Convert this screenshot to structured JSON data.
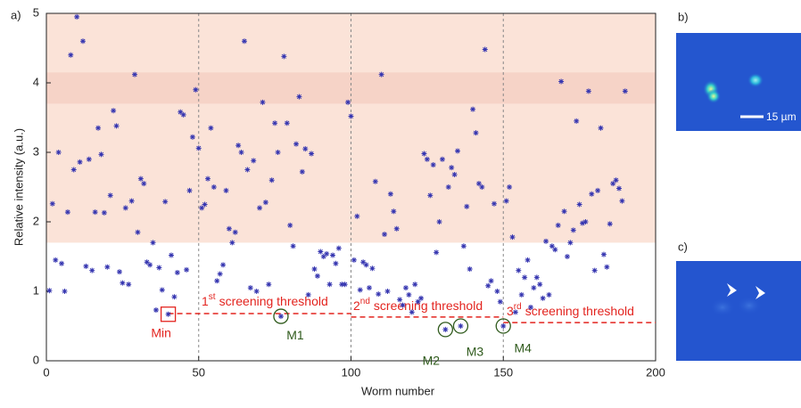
{
  "chart_data": {
    "type": "scatter",
    "panel_label": "a)",
    "xlabel": "Worm number",
    "ylabel": "Relative intensity (a.u.)",
    "xlim": [
      0,
      200
    ],
    "xticks": [
      0,
      50,
      100,
      150,
      200
    ],
    "ylim": [
      0,
      5
    ],
    "yticks": [
      0,
      1,
      2,
      3,
      4,
      5
    ],
    "vlines": [
      50,
      100,
      150
    ],
    "color": "#3535b0",
    "bands": [
      {
        "from": 1.7,
        "to": 5,
        "color": "#fbe3d8"
      },
      {
        "from": 3.7,
        "to": 4.15,
        "color": "#f6d3c7"
      }
    ],
    "x": [
      1,
      2,
      3,
      4,
      5,
      6,
      7,
      8,
      9,
      10,
      11,
      12,
      13,
      14,
      15,
      16,
      17,
      18,
      19,
      20,
      21,
      22,
      23,
      24,
      25,
      26,
      27,
      28,
      29,
      30,
      31,
      32,
      33,
      34,
      35,
      36,
      37,
      38,
      39,
      40,
      41,
      42,
      43,
      44,
      45,
      46,
      47,
      48,
      49,
      50,
      51,
      52,
      53,
      54,
      55,
      56,
      57,
      58,
      59,
      60,
      61,
      62,
      63,
      64,
      65,
      66,
      67,
      68,
      69,
      70,
      71,
      72,
      73,
      74,
      75,
      76,
      77,
      78,
      79,
      80,
      81,
      82,
      83,
      84,
      85,
      86,
      87,
      88,
      89,
      90,
      91,
      92,
      93,
      94,
      95,
      96,
      97,
      98,
      99,
      100,
      101,
      102,
      103,
      104,
      105,
      106,
      107,
      108,
      109,
      110,
      111,
      112,
      113,
      114,
      115,
      116,
      117,
      118,
      119,
      120,
      121,
      122,
      123,
      124,
      125,
      126,
      127,
      128,
      129,
      130,
      131,
      132,
      133,
      134,
      135,
      136,
      137,
      138,
      139,
      140,
      141,
      142,
      143,
      144,
      145,
      146,
      147,
      148,
      149,
      150,
      151,
      152,
      153,
      154,
      155,
      156,
      157,
      158,
      159,
      160,
      161,
      162,
      163,
      164,
      165,
      166,
      167,
      168,
      169,
      170,
      171,
      172,
      173,
      174,
      175,
      176,
      177,
      178,
      179,
      180,
      181,
      182,
      183,
      184,
      185,
      186,
      187,
      188,
      189,
      190
    ],
    "values": [
      1.01,
      2.26,
      1.45,
      3.0,
      1.4,
      1.0,
      2.14,
      4.4,
      2.75,
      4.95,
      2.86,
      4.6,
      1.36,
      2.9,
      1.3,
      2.14,
      3.35,
      2.97,
      2.13,
      1.35,
      2.38,
      3.6,
      3.38,
      1.28,
      1.12,
      2.2,
      1.1,
      2.3,
      4.12,
      1.85,
      2.62,
      2.55,
      1.42,
      1.38,
      1.7,
      0.73,
      1.34,
      1.02,
      2.29,
      0.67,
      1.52,
      0.92,
      1.27,
      3.58,
      3.54,
      1.31,
      2.45,
      3.22,
      3.9,
      3.06,
      2.2,
      2.25,
      2.62,
      3.35,
      2.5,
      1.15,
      1.25,
      1.38,
      2.45,
      1.9,
      1.7,
      1.85,
      3.1,
      3.0,
      4.6,
      2.75,
      1.05,
      2.88,
      1.0,
      2.2,
      3.72,
      2.28,
      1.1,
      2.6,
      3.42,
      3.0,
      0.64,
      4.38,
      3.42,
      1.95,
      1.65,
      3.12,
      3.8,
      2.72,
      3.05,
      0.95,
      2.98,
      1.32,
      1.22,
      1.57,
      1.5,
      1.54,
      1.1,
      1.52,
      1.4,
      1.62,
      1.1,
      1.1,
      3.72,
      3.52,
      1.45,
      2.08,
      1.02,
      1.42,
      1.38,
      1.05,
      1.33,
      2.58,
      0.96,
      4.12,
      1.82,
      1.0,
      2.4,
      2.15,
      1.9,
      0.88,
      0.8,
      1.05,
      0.95,
      0.7,
      1.1,
      0.85,
      0.9,
      2.98,
      2.9,
      2.38,
      2.82,
      1.56,
      2.0,
      2.9,
      0.45,
      2.5,
      2.78,
      2.68,
      3.02,
      0.5,
      1.65,
      2.22,
      1.32,
      3.62,
      3.28,
      2.55,
      2.5,
      4.48,
      1.08,
      1.15,
      2.26,
      1.0,
      0.85,
      0.5,
      2.3,
      2.5,
      1.78,
      0.7,
      1.3,
      0.95,
      1.2,
      1.45,
      0.77,
      1.05,
      1.2,
      1.1,
      0.9,
      1.72,
      0.95,
      1.65,
      1.6,
      1.95,
      4.02,
      2.15,
      1.5,
      1.7,
      1.88,
      3.45,
      2.25,
      1.98,
      2.0,
      3.88,
      2.4,
      1.3,
      2.45,
      3.35,
      1.53,
      1.35,
      1.97,
      2.55,
      2.6,
      2.48,
      2.3,
      3.88
    ],
    "thresholds": [
      {
        "from": 40,
        "to": 100,
        "value": 0.68,
        "prefix": "1",
        "sup": "st",
        "text": "screening threshold"
      },
      {
        "from": 100,
        "to": 150,
        "value": 0.63,
        "prefix": "2",
        "sup": "nd",
        "text": "screening threshold"
      },
      {
        "from": 150,
        "to": 200,
        "value": 0.55,
        "prefix": "3",
        "sup": "rd",
        "text": "screening threshold"
      }
    ],
    "threshold_color": "#e3241f",
    "annotations": [
      {
        "text": "Min",
        "x": 40,
        "shape": "square",
        "color": "#e3241f"
      },
      {
        "text": "M1",
        "x": 77,
        "shape": "circle",
        "color": "#2f5a1c"
      },
      {
        "text": "M2",
        "x": 131,
        "shape": "circle",
        "color": "#2f5a1c"
      },
      {
        "text": "M3",
        "x": 136,
        "shape": "circle",
        "color": "#2f5a1c"
      },
      {
        "text": "M4",
        "x": 150,
        "shape": "circle",
        "color": "#2f5a1c"
      }
    ]
  },
  "panels": [
    {
      "label": "b)",
      "scale_bar": "15 µm"
    },
    {
      "label": "c)"
    }
  ]
}
